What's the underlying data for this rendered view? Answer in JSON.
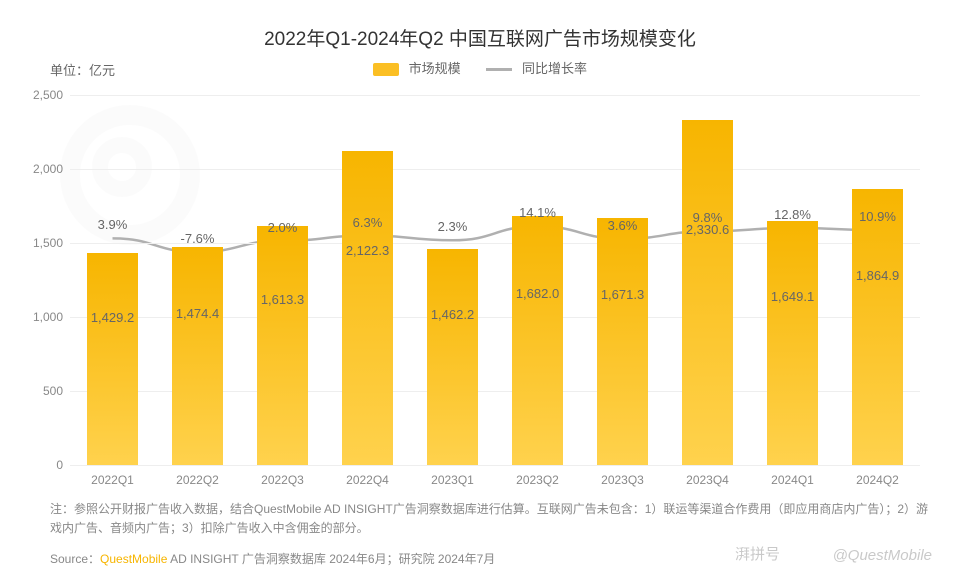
{
  "title": "2022年Q1-2024年Q2 中国互联网广告市场规模变化",
  "unit": "单位：亿元",
  "legend": {
    "bar": "市场规模",
    "line": "同比增长率"
  },
  "chart": {
    "type": "bar+line",
    "categories": [
      "2022Q1",
      "2022Q2",
      "2022Q3",
      "2022Q4",
      "2023Q1",
      "2023Q2",
      "2023Q3",
      "2023Q4",
      "2024Q1",
      "2024Q2"
    ],
    "bar_values": [
      1429.2,
      1474.4,
      1613.3,
      2122.3,
      1462.2,
      1682.0,
      1671.3,
      2330.6,
      1649.1,
      1864.9
    ],
    "bar_labels": [
      "1,429.2",
      "1,474.4",
      "1,613.3",
      "2,122.3",
      "1,462.2",
      "1,682.0",
      "1,671.3",
      "2,330.6",
      "1,649.1",
      "1,864.9"
    ],
    "line_values": [
      3.9,
      -7.6,
      2.0,
      6.3,
      2.3,
      14.1,
      3.6,
      9.8,
      12.8,
      10.9
    ],
    "line_labels": [
      "3.9%",
      "-7.6%",
      "2.0%",
      "6.3%",
      "2.3%",
      "14.1%",
      "3.6%",
      "9.8%",
      "12.8%",
      "10.9%"
    ],
    "ylim": [
      0,
      2500
    ],
    "ytick_step": 500,
    "ytick_labels": [
      "0",
      "500",
      "1,000",
      "1,500",
      "2,000",
      "2,500"
    ],
    "bar_color_top": "#f7b500",
    "bar_color_bottom": "#ffd24d",
    "line_color": "#b0b0b0",
    "line_width": 2.5,
    "grid_color": "#eeeeee",
    "background_color": "#ffffff",
    "bar_width_ratio": 0.6
  },
  "note": "注：参照公开财报广告收入数据，结合QuestMobile AD INSIGHT广告洞察数据库进行估算。互联网广告未包含：1）联运等渠道合作费用（即应用商店内广告）；2）游戏内广告、音频内广告；3）扣除广告收入中含佣金的部分。",
  "source_prefix": "Source：",
  "source_brand": "QuestMobile",
  "source_rest": " AD INSIGHT 广告洞察数据库 2024年6月；研究院 2024年7月",
  "watermark_left": "湃拼号",
  "watermark_right": "@QuestMobile"
}
